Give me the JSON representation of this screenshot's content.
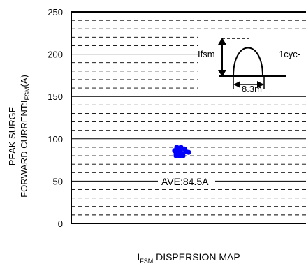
{
  "chart_data": {
    "type": "scatter",
    "title": "",
    "xlabel": {
      "prefix": "I",
      "subscript": "FSM",
      "suffix": " DISPERSION MAP"
    },
    "ylabel": {
      "line1": "PEAK SURGE",
      "line2_prefix": "FORWARD CURRENT:I",
      "line2_subscript": "FSM",
      "line2_suffix": "(A)"
    },
    "ylim": [
      0,
      250
    ],
    "yticks": [
      0,
      50,
      100,
      150,
      200,
      250
    ],
    "ytick_labels": [
      "0",
      "50",
      "100",
      "150",
      "200",
      "250"
    ],
    "minor_grid_step": 10,
    "grid": true,
    "point_color": "#0000ff",
    "series": [
      {
        "values": [
          90,
          90,
          88,
          87,
          86,
          85,
          85,
          84,
          84,
          83,
          82,
          80,
          80,
          80
        ]
      }
    ],
    "annotation": "AVE:84.5A",
    "inset": {
      "peak_label": "Ifsm",
      "cycle_label": "1cyc-",
      "duration_label": "8.3m"
    }
  }
}
